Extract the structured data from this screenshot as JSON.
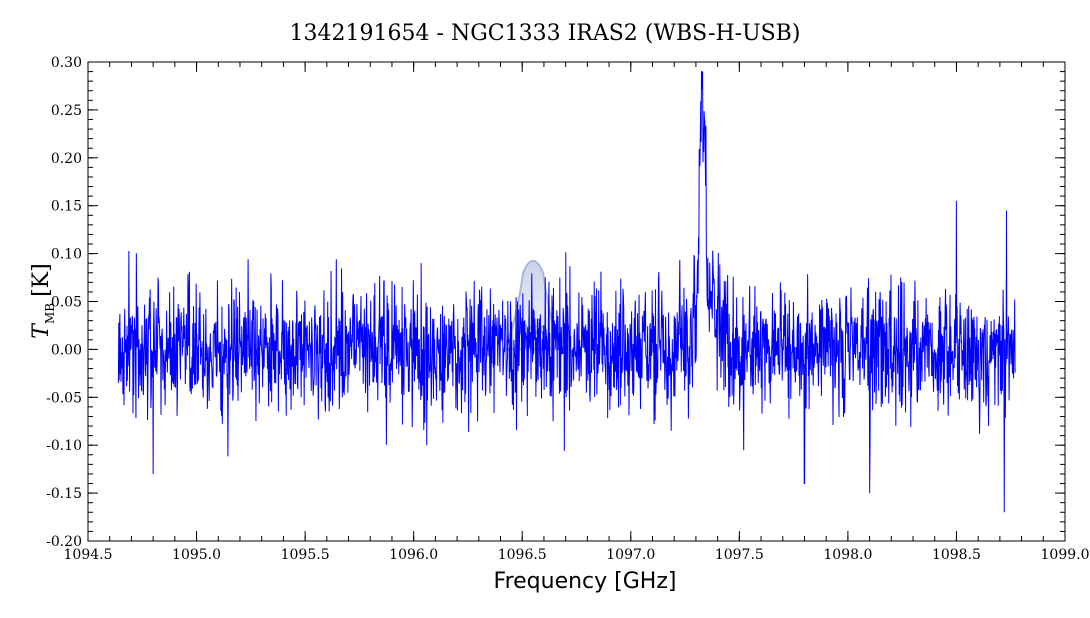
{
  "chart_data": {
    "type": "line",
    "title": "1342191654 - NGC1333 IRAS2 (WBS-H-USB)",
    "xlabel": "Frequency [GHz]",
    "ylabel": {
      "symbol": "T",
      "subscript": "MB",
      "unit": "[K]"
    },
    "xlim": [
      1094.5,
      1099.0
    ],
    "ylim": [
      -0.2,
      0.3
    ],
    "x_ticks": [
      "1094.5",
      "1095.0",
      "1095.5",
      "1096.0",
      "1096.5",
      "1097.0",
      "1097.5",
      "1098.0",
      "1098.5",
      "1099.0"
    ],
    "y_ticks": [
      "-0.20",
      "-0.15",
      "-0.10",
      "-0.05",
      "0.00",
      "0.05",
      "0.10",
      "0.15",
      "0.20",
      "0.25",
      "0.30"
    ],
    "grid": false,
    "series": [
      {
        "color": "#0000ff",
        "x_start": 1094.64,
        "x_end": 1098.77,
        "noise_rms": 0.032,
        "features": [
          {
            "type": "emission_line",
            "center": 1097.33,
            "peak": 0.24,
            "fwhm": 0.03
          },
          {
            "type": "emission_wing",
            "center": 1097.36,
            "peak": 0.045,
            "fwhm": 0.12
          }
        ],
        "extremes": [
          {
            "x": 1094.8,
            "y": -0.13
          },
          {
            "x": 1096.06,
            "y": -0.1
          },
          {
            "x": 1097.34,
            "y": 0.24
          },
          {
            "x": 1097.8,
            "y": -0.14
          },
          {
            "x": 1098.1,
            "y": -0.15
          },
          {
            "x": 1098.5,
            "y": 0.155
          },
          {
            "x": 1098.72,
            "y": -0.17
          },
          {
            "x": 1098.73,
            "y": 0.145
          }
        ]
      }
    ],
    "watermark": {
      "text": "HSA",
      "center_x": 1096.55
    }
  }
}
